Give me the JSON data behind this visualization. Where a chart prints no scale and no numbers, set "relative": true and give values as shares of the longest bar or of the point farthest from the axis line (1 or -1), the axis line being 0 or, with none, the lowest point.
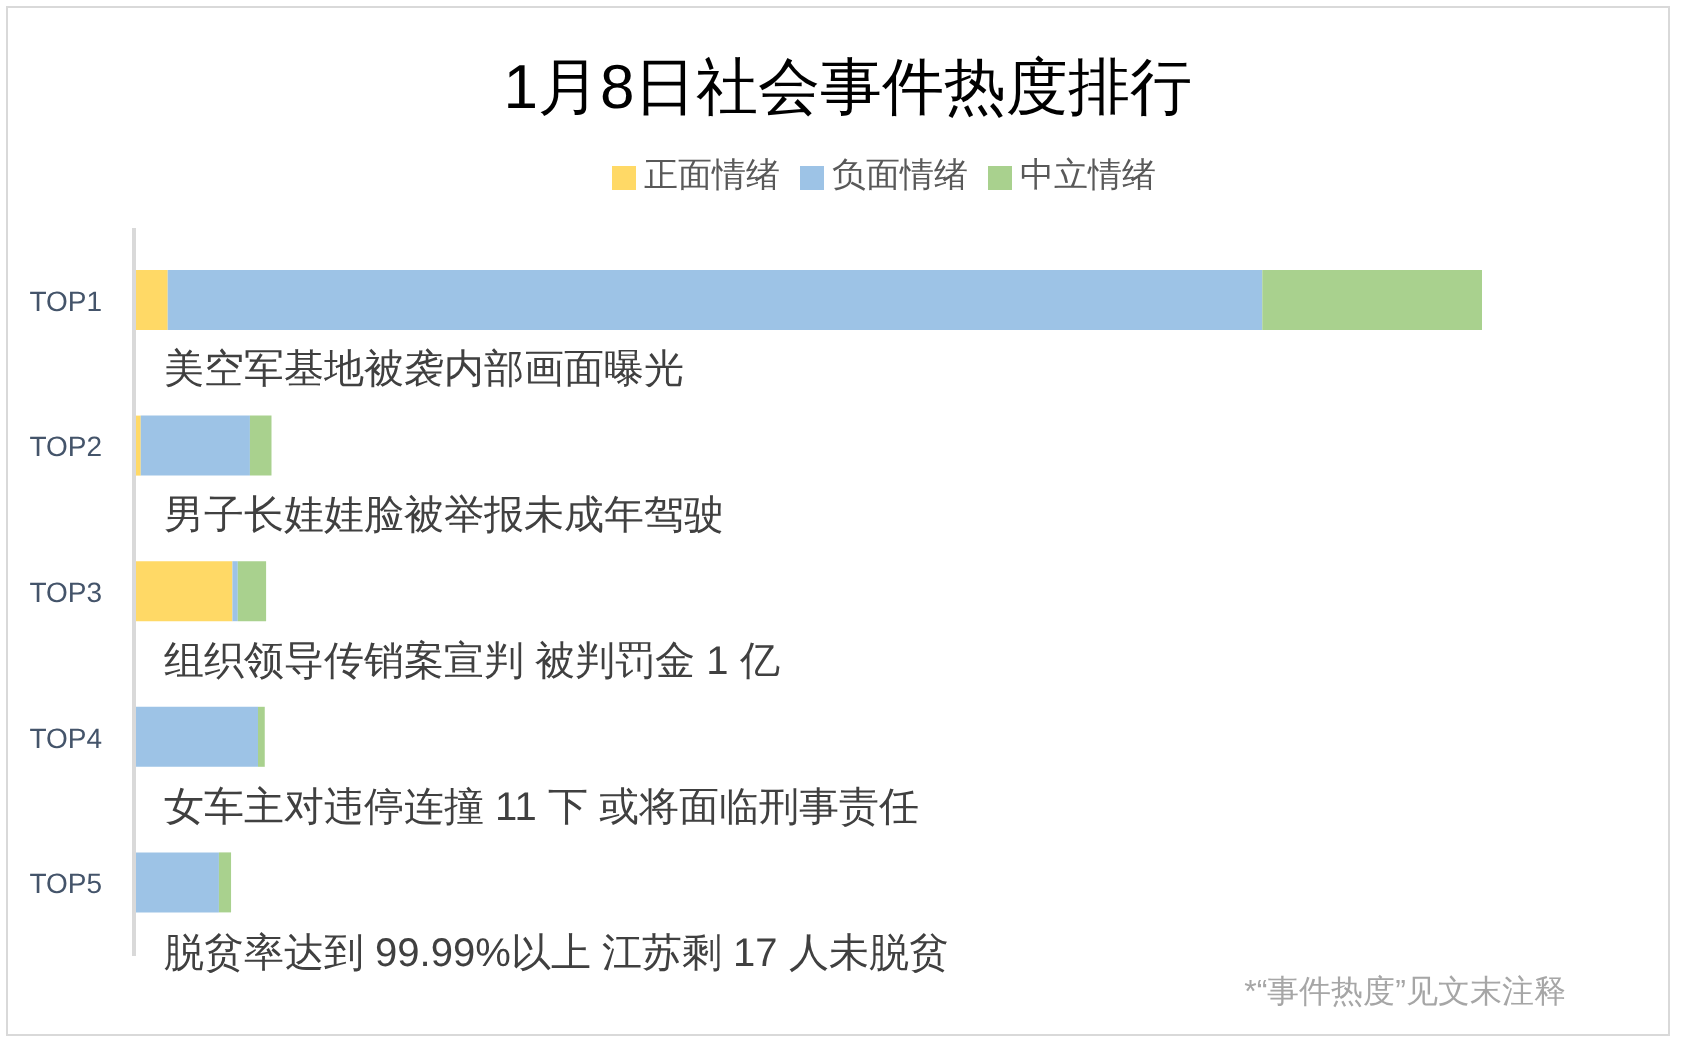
{
  "chart_data": {
    "type": "bar",
    "title": "1月8日社会事件热度排行",
    "orientation": "horizontal",
    "stacked": true,
    "relative": true,
    "categories": [
      "TOP1",
      "TOP2",
      "TOP3",
      "TOP4",
      "TOP5"
    ],
    "series": [
      {
        "name": "正面情绪",
        "color": "#ffd966",
        "values": [
          0.025,
          0.005,
          0.073,
          0,
          0
        ]
      },
      {
        "name": "负面情绪",
        "color": "#9dc3e6",
        "values": [
          0.812,
          0.081,
          0.004,
          0.092,
          0.063
        ]
      },
      {
        "name": "中立情绪",
        "color": "#a9d18e",
        "values": [
          0.163,
          0.016,
          0.021,
          0.005,
          0.009
        ]
      }
    ],
    "legend": "top",
    "annotations": [
      "美空军基地被袭内部画面曝光",
      "男子长娃娃脸被举报未成年驾驶",
      "组织领导传销案宣判 被判罚金 1 亿",
      "女车主对违停连撞 11 下 或将面临刑事责任",
      "脱贫率达到 99.99%以上 江苏剩 17 人未脱贫",
      "*“事件热度”见文末注释"
    ]
  }
}
